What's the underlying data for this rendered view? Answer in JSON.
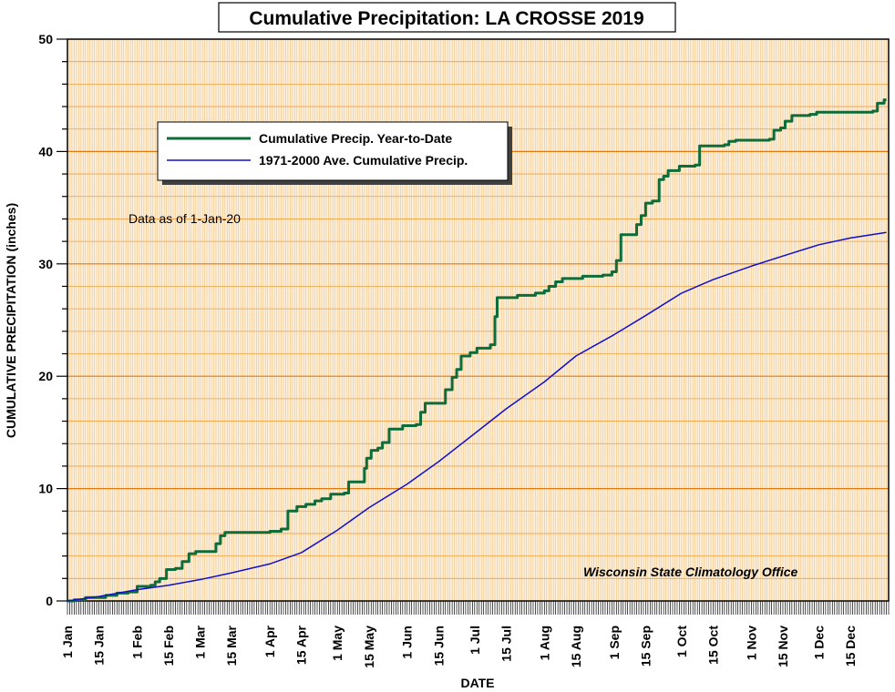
{
  "chart_data": {
    "type": "line",
    "title": "Cumulative Precipitation: LA CROSSE 2019",
    "xlabel": "DATE",
    "ylabel": "CUMULATIVE PRECIPITATION (inches)",
    "ylim": [
      0,
      50
    ],
    "xlim": [
      "2019-01-01",
      "2020-01-01"
    ],
    "y_ticks": [
      0,
      10,
      20,
      30,
      40,
      50
    ],
    "x_ticks": [
      {
        "date": "2019-01-01",
        "label": "1 Jan"
      },
      {
        "date": "2019-01-15",
        "label": "15 Jan"
      },
      {
        "date": "2019-02-01",
        "label": "1 Feb"
      },
      {
        "date": "2019-02-15",
        "label": "15 Feb"
      },
      {
        "date": "2019-03-01",
        "label": "1 Mar"
      },
      {
        "date": "2019-03-15",
        "label": "15 Mar"
      },
      {
        "date": "2019-04-01",
        "label": "1 Apr"
      },
      {
        "date": "2019-04-15",
        "label": "15 Apr"
      },
      {
        "date": "2019-05-01",
        "label": "1 May"
      },
      {
        "date": "2019-05-15",
        "label": "15 May"
      },
      {
        "date": "2019-06-01",
        "label": "1 Jun"
      },
      {
        "date": "2019-06-15",
        "label": "15 Jun"
      },
      {
        "date": "2019-07-01",
        "label": "1 Jul"
      },
      {
        "date": "2019-07-15",
        "label": "15 Jul"
      },
      {
        "date": "2019-08-01",
        "label": "1 Aug"
      },
      {
        "date": "2019-08-15",
        "label": "15 Aug"
      },
      {
        "date": "2019-09-01",
        "label": "1 Sep"
      },
      {
        "date": "2019-09-15",
        "label": "15 Sep"
      },
      {
        "date": "2019-10-01",
        "label": "1 Oct"
      },
      {
        "date": "2019-10-15",
        "label": "15 Oct"
      },
      {
        "date": "2019-11-01",
        "label": "1 Nov"
      },
      {
        "date": "2019-11-15",
        "label": "15 Nov"
      },
      {
        "date": "2019-12-01",
        "label": "1 Dec"
      },
      {
        "date": "2019-12-15",
        "label": "15 Dec"
      }
    ],
    "grid": true,
    "legend_position": "top-left",
    "annotations": [
      "Data as of 1-Jan-20",
      "Wisconsin State Climatology Office"
    ],
    "series": [
      {
        "name": "Cumulative Precip. Year-to-Date",
        "color": "#0e6b3a",
        "style": "step",
        "points": [
          [
            "2019-01-01",
            0.0
          ],
          [
            "2019-01-04",
            0.1
          ],
          [
            "2019-01-09",
            0.3
          ],
          [
            "2019-01-18",
            0.5
          ],
          [
            "2019-01-23",
            0.7
          ],
          [
            "2019-01-28",
            0.8
          ],
          [
            "2019-02-01",
            1.3
          ],
          [
            "2019-02-07",
            1.4
          ],
          [
            "2019-02-09",
            1.7
          ],
          [
            "2019-02-11",
            2.0
          ],
          [
            "2019-02-14",
            2.8
          ],
          [
            "2019-02-18",
            2.9
          ],
          [
            "2019-02-21",
            3.5
          ],
          [
            "2019-02-24",
            4.2
          ],
          [
            "2019-02-27",
            4.4
          ],
          [
            "2019-03-08",
            5.1
          ],
          [
            "2019-03-10",
            5.8
          ],
          [
            "2019-03-12",
            6.1
          ],
          [
            "2019-04-01",
            6.2
          ],
          [
            "2019-04-06",
            6.4
          ],
          [
            "2019-04-09",
            8.0
          ],
          [
            "2019-04-13",
            8.4
          ],
          [
            "2019-04-17",
            8.6
          ],
          [
            "2019-04-21",
            8.9
          ],
          [
            "2019-04-24",
            9.1
          ],
          [
            "2019-04-28",
            9.5
          ],
          [
            "2019-05-04",
            9.6
          ],
          [
            "2019-05-06",
            10.6
          ],
          [
            "2019-05-13",
            11.8
          ],
          [
            "2019-05-14",
            12.7
          ],
          [
            "2019-05-16",
            13.4
          ],
          [
            "2019-05-19",
            13.6
          ],
          [
            "2019-05-21",
            14.1
          ],
          [
            "2019-05-24",
            15.3
          ],
          [
            "2019-05-30",
            15.6
          ],
          [
            "2019-06-05",
            15.7
          ],
          [
            "2019-06-07",
            16.8
          ],
          [
            "2019-06-09",
            17.6
          ],
          [
            "2019-06-18",
            18.8
          ],
          [
            "2019-06-21",
            19.9
          ],
          [
            "2019-06-23",
            20.6
          ],
          [
            "2019-06-25",
            21.8
          ],
          [
            "2019-06-29",
            22.1
          ],
          [
            "2019-07-02",
            22.5
          ],
          [
            "2019-07-08",
            22.8
          ],
          [
            "2019-07-10",
            25.3
          ],
          [
            "2019-07-11",
            27.0
          ],
          [
            "2019-07-20",
            27.2
          ],
          [
            "2019-07-28",
            27.4
          ],
          [
            "2019-08-01",
            27.6
          ],
          [
            "2019-08-03",
            28.0
          ],
          [
            "2019-08-06",
            28.4
          ],
          [
            "2019-08-09",
            28.7
          ],
          [
            "2019-08-18",
            28.9
          ],
          [
            "2019-08-27",
            29.0
          ],
          [
            "2019-08-31",
            29.3
          ],
          [
            "2019-09-02",
            30.3
          ],
          [
            "2019-09-04",
            32.6
          ],
          [
            "2019-09-11",
            33.5
          ],
          [
            "2019-09-13",
            34.3
          ],
          [
            "2019-09-15",
            35.4
          ],
          [
            "2019-09-18",
            35.6
          ],
          [
            "2019-09-21",
            37.5
          ],
          [
            "2019-09-23",
            37.8
          ],
          [
            "2019-09-25",
            38.3
          ],
          [
            "2019-09-30",
            38.7
          ],
          [
            "2019-10-07",
            38.8
          ],
          [
            "2019-10-09",
            40.5
          ],
          [
            "2019-10-20",
            40.6
          ],
          [
            "2019-10-22",
            40.9
          ],
          [
            "2019-10-25",
            41.0
          ],
          [
            "2019-11-09",
            41.1
          ],
          [
            "2019-11-11",
            41.9
          ],
          [
            "2019-11-14",
            42.1
          ],
          [
            "2019-11-16",
            42.7
          ],
          [
            "2019-11-19",
            43.2
          ],
          [
            "2019-11-27",
            43.3
          ],
          [
            "2019-11-30",
            43.5
          ],
          [
            "2019-12-25",
            43.6
          ],
          [
            "2019-12-27",
            44.3
          ],
          [
            "2019-12-30",
            44.6
          ],
          [
            "2019-12-31",
            44.6
          ]
        ]
      },
      {
        "name": "1971-2000 Ave. Cumulative Precip.",
        "color": "#1010cc",
        "style": "line",
        "points": [
          [
            "2019-01-01",
            0.0
          ],
          [
            "2019-01-15",
            0.4
          ],
          [
            "2019-02-01",
            1.0
          ],
          [
            "2019-02-15",
            1.4
          ],
          [
            "2019-03-01",
            1.9
          ],
          [
            "2019-03-15",
            2.5
          ],
          [
            "2019-04-01",
            3.3
          ],
          [
            "2019-04-15",
            4.3
          ],
          [
            "2019-05-01",
            6.3
          ],
          [
            "2019-05-15",
            8.3
          ],
          [
            "2019-06-01",
            10.4
          ],
          [
            "2019-06-15",
            12.4
          ],
          [
            "2019-07-01",
            14.9
          ],
          [
            "2019-07-15",
            17.1
          ],
          [
            "2019-08-01",
            19.5
          ],
          [
            "2019-08-15",
            21.8
          ],
          [
            "2019-09-01",
            23.7
          ],
          [
            "2019-09-15",
            25.4
          ],
          [
            "2019-10-01",
            27.4
          ],
          [
            "2019-10-15",
            28.6
          ],
          [
            "2019-11-01",
            29.8
          ],
          [
            "2019-11-15",
            30.7
          ],
          [
            "2019-12-01",
            31.7
          ],
          [
            "2019-12-15",
            32.3
          ],
          [
            "2019-12-31",
            32.8
          ]
        ]
      }
    ]
  }
}
